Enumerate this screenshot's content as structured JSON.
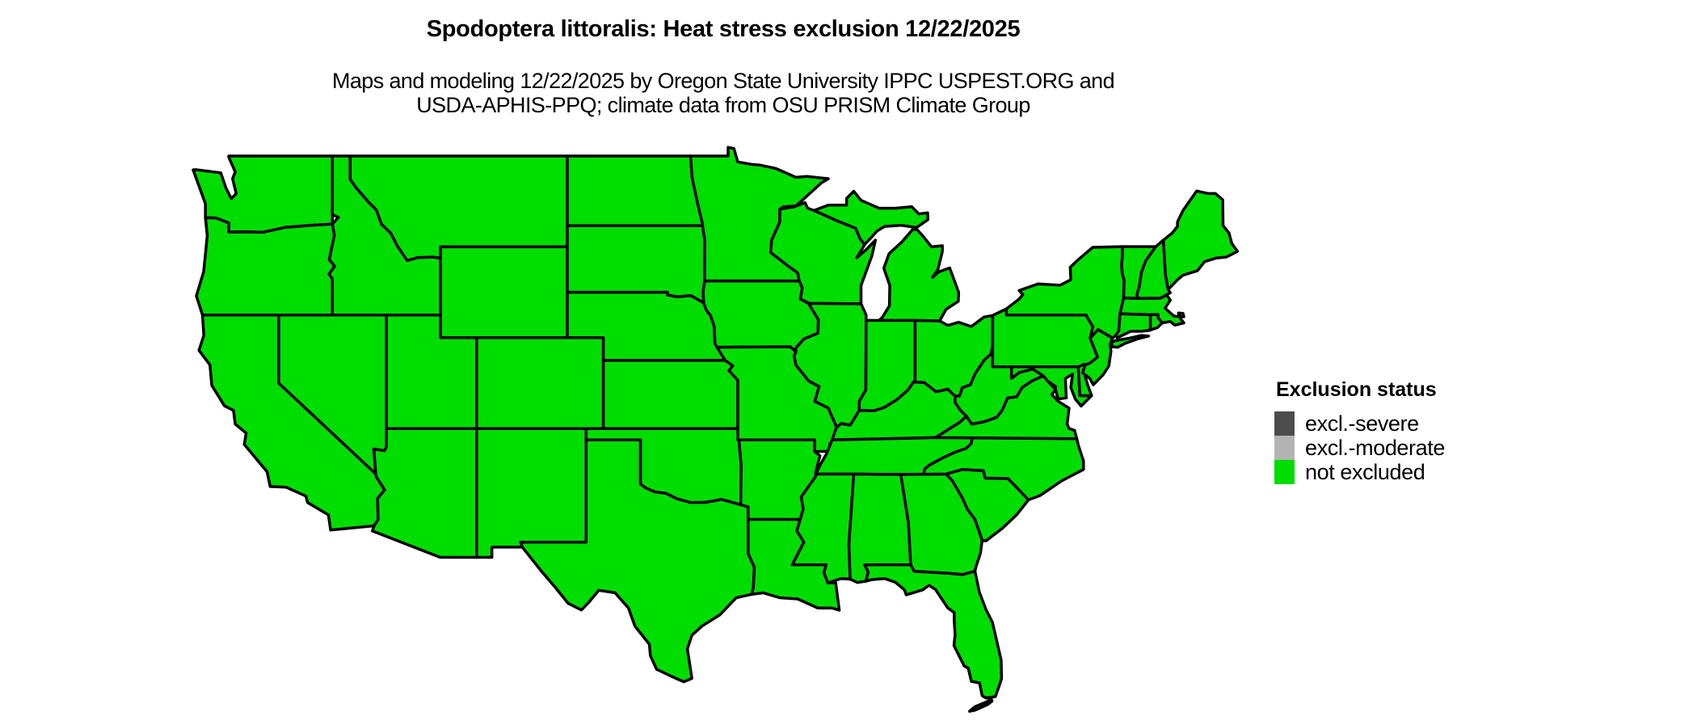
{
  "header": {
    "title": "Spodoptera littoralis: Heat stress exclusion 12/22/2025",
    "subtitle_line1": "Maps and modeling 12/22/2025 by Oregon State University IPPC USPEST.ORG and",
    "subtitle_line2": "USDA-APHIS-PPQ; climate data from OSU PRISM Climate Group"
  },
  "legend": {
    "title": "Exclusion status",
    "items": [
      {
        "label": "excl.-severe",
        "color": "#4D4D4D"
      },
      {
        "label": "excl.-moderate",
        "color": "#B3B3B3"
      },
      {
        "label": "not excluded",
        "color": "#00DD00"
      }
    ]
  },
  "map": {
    "background": "#FFFFFF",
    "state_border_color": "#000000",
    "states": [
      {
        "code": "WA",
        "name": "Washington",
        "status": "not excluded"
      },
      {
        "code": "OR",
        "name": "Oregon",
        "status": "not excluded"
      },
      {
        "code": "CA",
        "name": "California",
        "status": "not excluded"
      },
      {
        "code": "NV",
        "name": "Nevada",
        "status": "not excluded"
      },
      {
        "code": "ID",
        "name": "Idaho",
        "status": "not excluded"
      },
      {
        "code": "MT",
        "name": "Montana",
        "status": "not excluded"
      },
      {
        "code": "WY",
        "name": "Wyoming",
        "status": "not excluded"
      },
      {
        "code": "UT",
        "name": "Utah",
        "status": "not excluded"
      },
      {
        "code": "CO",
        "name": "Colorado",
        "status": "not excluded"
      },
      {
        "code": "AZ",
        "name": "Arizona",
        "status": "not excluded"
      },
      {
        "code": "NM",
        "name": "New Mexico",
        "status": "not excluded"
      },
      {
        "code": "ND",
        "name": "North Dakota",
        "status": "not excluded"
      },
      {
        "code": "SD",
        "name": "South Dakota",
        "status": "not excluded"
      },
      {
        "code": "NE",
        "name": "Nebraska",
        "status": "not excluded"
      },
      {
        "code": "KS",
        "name": "Kansas",
        "status": "not excluded"
      },
      {
        "code": "OK",
        "name": "Oklahoma",
        "status": "not excluded"
      },
      {
        "code": "TX",
        "name": "Texas",
        "status": "not excluded"
      },
      {
        "code": "MN",
        "name": "Minnesota",
        "status": "not excluded"
      },
      {
        "code": "IA",
        "name": "Iowa",
        "status": "not excluded"
      },
      {
        "code": "MO",
        "name": "Missouri",
        "status": "not excluded"
      },
      {
        "code": "AR",
        "name": "Arkansas",
        "status": "not excluded"
      },
      {
        "code": "LA",
        "name": "Louisiana",
        "status": "not excluded"
      },
      {
        "code": "WI",
        "name": "Wisconsin",
        "status": "not excluded"
      },
      {
        "code": "IL",
        "name": "Illinois",
        "status": "not excluded"
      },
      {
        "code": "IN",
        "name": "Indiana",
        "status": "not excluded"
      },
      {
        "code": "OH",
        "name": "Ohio",
        "status": "not excluded"
      },
      {
        "code": "MI",
        "name": "Michigan",
        "status": "not excluded"
      },
      {
        "code": "KY",
        "name": "Kentucky",
        "status": "not excluded"
      },
      {
        "code": "TN",
        "name": "Tennessee",
        "status": "not excluded"
      },
      {
        "code": "MS",
        "name": "Mississippi",
        "status": "not excluded"
      },
      {
        "code": "AL",
        "name": "Alabama",
        "status": "not excluded"
      },
      {
        "code": "GA",
        "name": "Georgia",
        "status": "not excluded"
      },
      {
        "code": "FL",
        "name": "Florida",
        "status": "not excluded"
      },
      {
        "code": "SC",
        "name": "South Carolina",
        "status": "not excluded"
      },
      {
        "code": "NC",
        "name": "North Carolina",
        "status": "not excluded"
      },
      {
        "code": "VA",
        "name": "Virginia",
        "status": "not excluded"
      },
      {
        "code": "WV",
        "name": "West Virginia",
        "status": "not excluded"
      },
      {
        "code": "MD",
        "name": "Maryland",
        "status": "not excluded"
      },
      {
        "code": "DE",
        "name": "Delaware",
        "status": "not excluded"
      },
      {
        "code": "PA",
        "name": "Pennsylvania",
        "status": "not excluded"
      },
      {
        "code": "NJ",
        "name": "New Jersey",
        "status": "not excluded"
      },
      {
        "code": "NY",
        "name": "New York",
        "status": "not excluded"
      },
      {
        "code": "VT",
        "name": "Vermont",
        "status": "not excluded"
      },
      {
        "code": "NH",
        "name": "New Hampshire",
        "status": "not excluded"
      },
      {
        "code": "ME",
        "name": "Maine",
        "status": "not excluded"
      },
      {
        "code": "MA",
        "name": "Massachusetts",
        "status": "not excluded"
      },
      {
        "code": "CT",
        "name": "Connecticut",
        "status": "not excluded"
      },
      {
        "code": "RI",
        "name": "Rhode Island",
        "status": "not excluded"
      }
    ]
  }
}
